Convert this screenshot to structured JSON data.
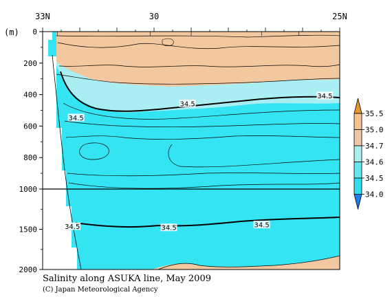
{
  "chart_data": {
    "type": "heatmap",
    "title": "Salinity along ASUKA line, May 2009",
    "credit": "(C) Japan Meteorological Agency",
    "ylabel": "(m)",
    "x_ticks": [
      "33N",
      "30",
      "25N"
    ],
    "x_range": [
      33,
      25
    ],
    "y_ticks": [
      "0",
      "200",
      "400",
      "600",
      "800",
      "1000",
      "1500",
      "2000"
    ],
    "y_range": [
      0,
      2000
    ],
    "y_axis_break_at": 1000,
    "contour_labels": [
      {
        "text": "34.5",
        "x": 32.1,
        "y": 550
      },
      {
        "text": "34.5",
        "x": 29.1,
        "y": 460
      },
      {
        "text": "34.5",
        "x": 25.4,
        "y": 410
      },
      {
        "text": "34.5",
        "x": 32.2,
        "y": 1470
      },
      {
        "text": "34.5",
        "x": 29.6,
        "y": 1485
      },
      {
        "text": "34.5",
        "x": 27.1,
        "y": 1450
      }
    ],
    "colorbar": {
      "labels": [
        "35.5",
        "35.0",
        "34.7",
        "34.6",
        "34.5",
        "34.0"
      ],
      "bins": [
        {
          "from": 35.5,
          "to": 36.0,
          "color": "#e89530"
        },
        {
          "from": 35.0,
          "to": 35.5,
          "color": "#f3c28d"
        },
        {
          "from": 34.7,
          "to": 35.0,
          "color": "#f2c8a4"
        },
        {
          "from": 34.6,
          "to": 34.7,
          "color": "#aaeeee"
        },
        {
          "from": 34.5,
          "to": 34.6,
          "color": "#66e7ef"
        },
        {
          "from": 34.0,
          "to": 34.5,
          "color": "#33ddf1"
        },
        {
          "from": 33.5,
          "to": 34.0,
          "color": "#1e7fe8"
        }
      ]
    },
    "colors": {
      "shallow_high_salinity": "#f3c8a0",
      "mid_salinity": "#a8eef2",
      "low_salinity": "#35e4f3",
      "contour": "#000000"
    }
  }
}
